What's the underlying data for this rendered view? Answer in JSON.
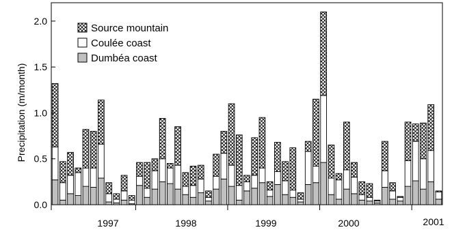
{
  "chart_data": {
    "type": "bar",
    "stacked": true,
    "ylabel": "Precipitation  (m/month)",
    "ylim": [
      0,
      2.2
    ],
    "yticks": [
      "0.0",
      "0.5",
      "1.0",
      "1.5",
      "2.0"
    ],
    "grid": false,
    "legend_position": "top-left",
    "year_labels": [
      "1997",
      "1998",
      "1999",
      "2000",
      "2001"
    ],
    "series": [
      {
        "name": "Dumbéa coast",
        "fill": "#c0c0c0",
        "values": [
          0.27,
          0.05,
          0.12,
          0.1,
          0.2,
          0.19,
          0.29,
          0.03,
          0.02,
          0.05,
          0.01,
          0.21,
          0.08,
          0.17,
          0.25,
          0.23,
          0.17,
          0.11,
          0.08,
          0.13,
          0.04,
          0.17,
          0.28,
          0.2,
          0.05,
          0.15,
          0.18,
          0.24,
          0.09,
          0.22,
          0.11,
          0.08,
          0.03,
          0.22,
          0.24,
          0.46,
          0.11,
          0.06,
          0.17,
          0.12,
          0.05,
          0.04,
          0.02,
          0.19,
          0.06,
          0.04,
          0.2,
          0.26,
          0.17,
          0.25,
          0.06
        ]
      },
      {
        "name": "Coulée coast",
        "fill": "#ffffff",
        "values": [
          0.36,
          0.19,
          0.2,
          0.25,
          0.2,
          0.21,
          0.37,
          0.09,
          0.04,
          0.1,
          0.04,
          0.1,
          0.1,
          0.2,
          0.25,
          0.17,
          0.26,
          0.09,
          0.13,
          0.15,
          0.04,
          0.14,
          0.28,
          0.23,
          0.16,
          0.1,
          0.14,
          0.16,
          0.07,
          0.14,
          0.15,
          0.08,
          0.03,
          0.36,
          0.18,
          0.73,
          0.18,
          0.21,
          0.21,
          0.18,
          0.06,
          0.04,
          0.02,
          0.18,
          0.09,
          0.04,
          0.28,
          0.43,
          0.33,
          0.34,
          0.08
        ]
      },
      {
        "name": "Source mountain",
        "fill": "#ffffff",
        "pattern": "crosshatch",
        "values": [
          0.69,
          0.23,
          0.25,
          0.05,
          0.42,
          0.4,
          0.48,
          0.12,
          0.06,
          0.17,
          0.05,
          0.15,
          0.28,
          0.13,
          0.44,
          0.05,
          0.42,
          0.15,
          0.21,
          0.15,
          0.07,
          0.24,
          0.24,
          0.67,
          0.55,
          0.07,
          0.41,
          0.55,
          0.09,
          0.32,
          0.21,
          0.46,
          0.07,
          0.11,
          0.73,
          0.91,
          0.36,
          0.07,
          0.52,
          0.16,
          0.14,
          0.15,
          0.01,
          0.32,
          0.09,
          0.01,
          0.42,
          0.19,
          0.39,
          0.5,
          0.01
        ]
      }
    ]
  }
}
